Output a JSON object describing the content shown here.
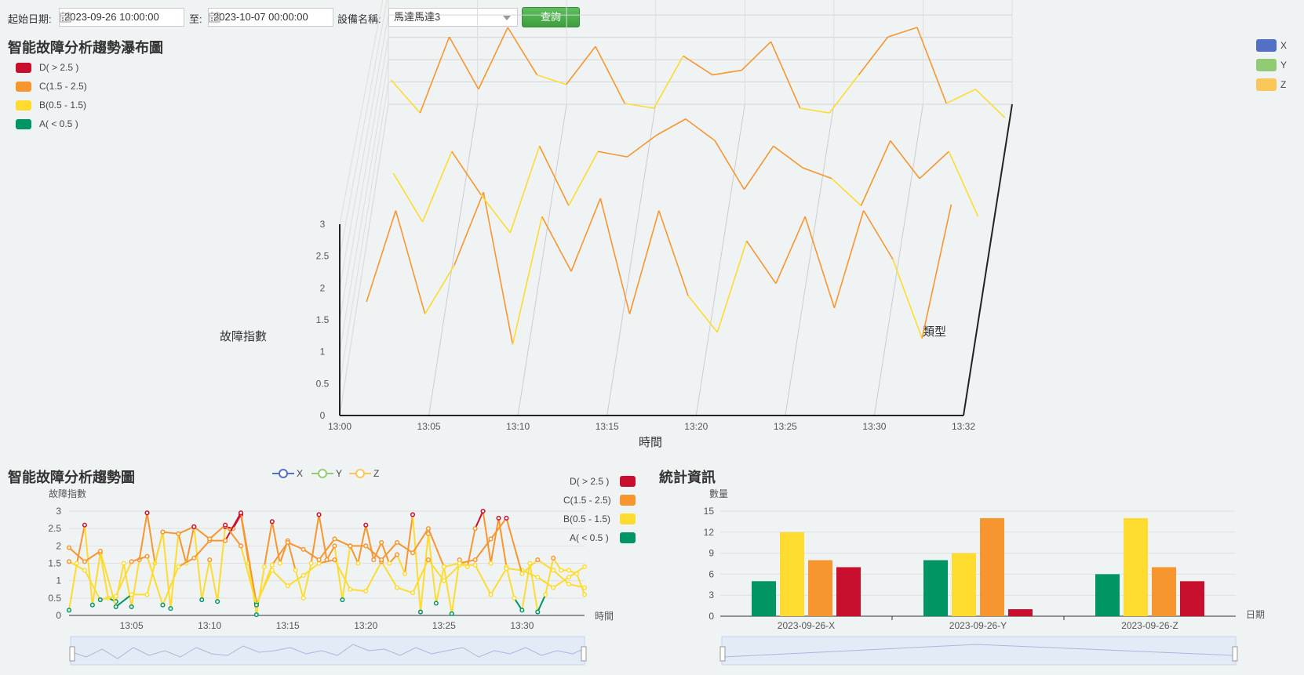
{
  "toolbar": {
    "start_label": "起始日期:",
    "start_value": "2023-09-26 10:00:00",
    "to_label": "至:",
    "end_value": "2023-10-07 00:00:00",
    "device_label": "設備名稱:",
    "device_value": "馬達馬達3",
    "query_button": "查詢"
  },
  "colors": {
    "D": "#c8102e",
    "C": "#f7962e",
    "B": "#fddc2f",
    "A": "#009563",
    "X": "#5470c6",
    "Y": "#91cc75",
    "Z": "#fac858"
  },
  "level_legend": [
    {
      "key": "D",
      "label": "D( > 2.5 )"
    },
    {
      "key": "C",
      "label": "C(1.5 - 2.5)"
    },
    {
      "key": "B",
      "label": "B(0.5 - 1.5)"
    },
    {
      "key": "A",
      "label": "A( < 0.5 )"
    }
  ],
  "axis_legend": [
    {
      "key": "X",
      "label": "X"
    },
    {
      "key": "Y",
      "label": "Y"
    },
    {
      "key": "Z",
      "label": "Z"
    }
  ],
  "chart_data": [
    {
      "type": "line",
      "title": "智能故障分析趨勢瀑布圖",
      "xlabel": "時間",
      "ylabel": "故障指數",
      "zlabel": "類型",
      "x_ticks": [
        "13:00",
        "13:05",
        "13:10",
        "13:15",
        "13:20",
        "13:25",
        "13:30",
        "13:32"
      ],
      "y_ticks": [
        "0",
        "0.5",
        "1",
        "1.5",
        "2",
        "2.5",
        "3"
      ],
      "ylim": [
        0,
        3
      ],
      "x_range": [
        0,
        32
      ],
      "series": [
        {
          "name": "X",
          "x": [
            1,
            2.5,
            4,
            5.5,
            7,
            8.5,
            10,
            11.5,
            13,
            14.5,
            16,
            17.5,
            19,
            20.5,
            22,
            23.5,
            25,
            26.5,
            28,
            29.5,
            31
          ],
          "values": [
            1.1,
            2.6,
            0.9,
            1.7,
            2.9,
            0.4,
            2.5,
            1.6,
            2.8,
            0.9,
            2.6,
            1.2,
            0.6,
            2.1,
            1.4,
            2.5,
            1.0,
            2.6,
            1.8,
            0.5,
            2.7
          ]
        },
        {
          "name": "Y",
          "x": [
            1.5,
            3,
            4.5,
            6,
            7.5,
            9,
            10.5,
            12,
            13.5,
            15,
            16.5,
            18,
            19.5,
            21,
            22.5,
            24,
            25.5,
            27,
            28.5,
            30,
            31.5
          ],
          "values": [
            1.6,
            0.7,
            2.0,
            1.2,
            0.5,
            2.1,
            1.0,
            2.0,
            1.9,
            2.3,
            2.6,
            2.2,
            1.3,
            2.1,
            1.7,
            1.5,
            1.0,
            2.2,
            1.5,
            2.0,
            0.8
          ]
        },
        {
          "name": "Z",
          "x": [
            0.5,
            2,
            3.5,
            5,
            6.5,
            8,
            9.5,
            11,
            12.5,
            14,
            15.5,
            17,
            18.5,
            20,
            21.5,
            23,
            24.5,
            26,
            27.5,
            29,
            30.5,
            32
          ],
          "values": [
            1.5,
            0.8,
            2.4,
            1.3,
            2.6,
            1.6,
            1.4,
            2.2,
            1.0,
            0.9,
            2.0,
            1.6,
            1.7,
            2.3,
            0.9,
            0.8,
            1.6,
            2.4,
            2.6,
            1.0,
            1.3,
            0.7
          ]
        }
      ]
    },
    {
      "type": "line",
      "title": "智能故障分析趨勢圖",
      "xlabel": "時間",
      "ylabel": "故障指數",
      "x_ticks": [
        "13:05",
        "13:10",
        "13:15",
        "13:20",
        "13:25",
        "13:30"
      ],
      "y_ticks": [
        "0",
        "0.5",
        "1",
        "1.5",
        "2",
        "2.5",
        "3"
      ],
      "ylim": [
        0,
        3
      ],
      "x_range": [
        0,
        33
      ],
      "series": [
        {
          "name": "X",
          "x": [
            0,
            0.5,
            1,
            1.5,
            2,
            2.5,
            3,
            3.5,
            4,
            4.5,
            5,
            5.5,
            6,
            6.5,
            7,
            7.5,
            8,
            8.5,
            9,
            9.5,
            10,
            10.5,
            11,
            11.5,
            12,
            12.5,
            13,
            13.5,
            14,
            14.5,
            15,
            15.5,
            16,
            16.5,
            17,
            17.5,
            18,
            18.5,
            19,
            19.5,
            20,
            20.5,
            21,
            21.5,
            22,
            22.5,
            23,
            23.5,
            24,
            24.5,
            25,
            25.5,
            26,
            26.5,
            27,
            27.5,
            28,
            28.5,
            29,
            29.5,
            30,
            30.5,
            31,
            31.5,
            32,
            32.5,
            33
          ],
          "values": [
            0.15,
            1.5,
            2.6,
            0.3,
            1.8,
            0.5,
            0.4,
            1.5,
            0.25,
            1.6,
            2.95,
            1.5,
            2.4,
            0.2,
            2.35,
            1.5,
            2.55,
            0.45,
            1.6,
            0.4,
            2.55,
            2.5,
            2.9,
            1.5,
            0.02,
            1.4,
            2.7,
            1.5,
            2.15,
            1.3,
            0.5,
            1.5,
            2.9,
            1.6,
            2.0,
            0.45,
            2.0,
            1.5,
            2.6,
            1.6,
            2.1,
            1.5,
            1.75,
            1.2,
            2.9,
            0.1,
            2.35,
            0.35,
            1.4,
            0.05,
            1.6,
            1.4,
            2.5,
            3.0,
            1.5,
            2.8,
            1.4,
            0.5,
            0.15,
            1.5,
            0.1,
            0.6,
            1.65,
            1.3,
            1.3,
            1.2,
            0.6
          ]
        },
        {
          "name": "Y",
          "x": [
            0,
            1,
            2,
            3,
            4,
            5,
            6,
            7,
            8,
            9,
            10,
            11,
            12,
            13,
            14,
            15,
            16,
            17,
            18,
            19,
            20,
            21,
            22,
            23,
            24,
            25,
            26,
            27,
            28,
            29,
            30,
            31,
            32,
            33
          ],
          "values": [
            1.55,
            1.3,
            0.45,
            0.55,
            1.55,
            1.7,
            0.3,
            1.4,
            1.65,
            2.15,
            2.15,
            2.95,
            0.35,
            1.3,
            0.85,
            1.15,
            1.5,
            1.6,
            0.75,
            0.7,
            1.55,
            0.8,
            0.65,
            1.6,
            1.0,
            1.45,
            1.45,
            0.6,
            1.35,
            1.3,
            1.1,
            0.8,
            1.1,
            1.4
          ]
        },
        {
          "name": "Z",
          "x": [
            0,
            1,
            2,
            3,
            4,
            5,
            6,
            7,
            8,
            9,
            10,
            11,
            12,
            13,
            14,
            15,
            16,
            17,
            18,
            19,
            20,
            21,
            22,
            23,
            24,
            25,
            26,
            27,
            28,
            29,
            30,
            31,
            32,
            33
          ],
          "values": [
            1.95,
            1.55,
            1.85,
            0.25,
            0.6,
            0.6,
            2.4,
            2.35,
            2.55,
            2.2,
            2.6,
            2.0,
            0.3,
            1.45,
            2.1,
            1.9,
            1.6,
            2.2,
            2.0,
            2.0,
            1.6,
            2.1,
            1.8,
            2.5,
            1.4,
            1.5,
            1.6,
            2.2,
            2.8,
            1.2,
            1.6,
            1.3,
            0.9,
            0.8
          ]
        }
      ]
    },
    {
      "type": "bar",
      "title": "統計資訊",
      "xlabel": "日期",
      "ylabel": "數量",
      "categories": [
        "2023-09-26-X",
        "2023-09-26-Y",
        "2023-09-26-Z"
      ],
      "y_ticks": [
        "0",
        "3",
        "6",
        "9",
        "12",
        "15"
      ],
      "ylim": [
        0,
        15
      ],
      "series": [
        {
          "name": "A( < 0.5 )",
          "values": [
            5,
            8,
            6
          ]
        },
        {
          "name": "B(0.5 - 1.5)",
          "values": [
            12,
            9,
            14
          ]
        },
        {
          "name": "C(1.5 - 2.5)",
          "values": [
            8,
            14,
            7
          ]
        },
        {
          "name": "D( > 2.5 )",
          "values": [
            7,
            1,
            5
          ]
        }
      ]
    }
  ]
}
